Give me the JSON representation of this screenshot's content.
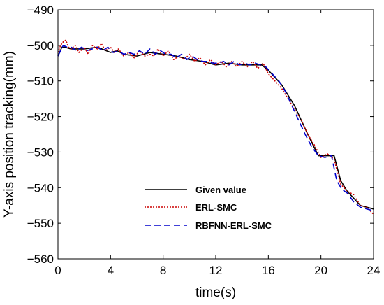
{
  "chart_data": {
    "type": "line",
    "title": "",
    "xlabel": "time(s)",
    "ylabel": "Y-axis position tracking(mm)",
    "xlim": [
      0,
      24
    ],
    "ylim": [
      -560,
      -490
    ],
    "xticks": [
      0,
      4,
      8,
      12,
      16,
      20,
      24
    ],
    "yticks": [
      -490,
      -500,
      -510,
      -520,
      -530,
      -540,
      -550,
      -560
    ],
    "xtick_labels": [
      "0",
      "4",
      "8",
      "12",
      "16",
      "20",
      "24"
    ],
    "ytick_labels": [
      "−490",
      "−500",
      "−510",
      "−520",
      "−530",
      "−540",
      "−550",
      "−560"
    ],
    "grid": false,
    "legend_position": "lower-left-center",
    "series": [
      {
        "name": "Given value",
        "color": "#000000",
        "style": "solid",
        "x": [
          0,
          0.3,
          0.5,
          1,
          2,
          3,
          4,
          4.5,
          5,
          6,
          7,
          8,
          9,
          10,
          11,
          12,
          13,
          14,
          15,
          15.5,
          16,
          17,
          18,
          19,
          19.8,
          20,
          20.5,
          21,
          21.5,
          22,
          23,
          24
        ],
        "y": [
          -503,
          -500.5,
          -500.5,
          -501,
          -501,
          -500.5,
          -502,
          -501.5,
          -502.5,
          -503,
          -502,
          -502.5,
          -503,
          -504,
          -504.5,
          -505.5,
          -505,
          -505.5,
          -505.5,
          -505.5,
          -507,
          -511,
          -517,
          -525,
          -531,
          -531,
          -531,
          -531,
          -538,
          -541,
          -545,
          -546
        ]
      },
      {
        "name": "ERL-SMC",
        "color": "#cc0000",
        "style": "dotted",
        "x": [
          0,
          0.2,
          0.4,
          0.6,
          0.8,
          1,
          1.3,
          1.6,
          2,
          2.3,
          2.6,
          3,
          3.3,
          3.6,
          4,
          4.3,
          4.6,
          5,
          5.4,
          5.8,
          6.2,
          6.6,
          7,
          7.3,
          7.6,
          8,
          8.4,
          8.8,
          9.2,
          9.6,
          10,
          10.4,
          10.8,
          11.2,
          11.6,
          12,
          12.4,
          12.8,
          13.2,
          13.6,
          14,
          14.4,
          14.8,
          15.2,
          15.6,
          16,
          16.5,
          17,
          17.5,
          18,
          18.5,
          19,
          19.5,
          20,
          20.5,
          21,
          21.5,
          22,
          22.5,
          23,
          23.5,
          24
        ],
        "y": [
          -502,
          -500,
          -499,
          -498.5,
          -500.5,
          -501,
          -500,
          -502,
          -500.5,
          -502.5,
          -500,
          -501,
          -499.5,
          -501.5,
          -500.5,
          -502,
          -501,
          -503,
          -502,
          -503.5,
          -501.5,
          -503,
          -502.5,
          -503,
          -501,
          -503,
          -501.5,
          -504,
          -503,
          -504,
          -502.5,
          -504.5,
          -503.5,
          -505.5,
          -504,
          -505.5,
          -504.5,
          -506,
          -504.5,
          -506,
          -504.5,
          -506,
          -504.5,
          -506.5,
          -505,
          -508,
          -510,
          -512,
          -515,
          -518,
          -521,
          -525,
          -528,
          -531.5,
          -530.5,
          -532,
          -539,
          -541,
          -542,
          -545,
          -545.5,
          -547.5
        ]
      },
      {
        "name": "RBFNN-ERL-SMC",
        "color": "#0000cc",
        "style": "dashed",
        "x": [
          0,
          0.2,
          0.4,
          0.7,
          1,
          1.4,
          1.8,
          2.2,
          2.6,
          3,
          3.4,
          3.8,
          4.2,
          4.6,
          5,
          5.4,
          5.8,
          6.2,
          6.6,
          7,
          7.4,
          7.8,
          8.2,
          8.6,
          9,
          9.4,
          9.8,
          10.2,
          10.6,
          11,
          11.4,
          11.8,
          12.2,
          12.6,
          13,
          13.4,
          13.8,
          14.2,
          14.6,
          15,
          15.4,
          15.8,
          16.3,
          16.8,
          17.3,
          17.8,
          18.3,
          18.8,
          19.3,
          19.8,
          20.3,
          20.8,
          21.2,
          21.6,
          22,
          22.5,
          23,
          23.5,
          24
        ],
        "y": [
          -503,
          -501.5,
          -500,
          -500.5,
          -500.5,
          -501.5,
          -500.5,
          -501.5,
          -501,
          -500.5,
          -501.5,
          -500.5,
          -502,
          -501.5,
          -502.5,
          -502,
          -502.5,
          -501.5,
          -502.5,
          -501,
          -502.5,
          -501.5,
          -502.5,
          -502.5,
          -503.5,
          -502.5,
          -504,
          -503,
          -504,
          -504.5,
          -504.5,
          -505,
          -505,
          -504.5,
          -505.5,
          -504.5,
          -505.5,
          -505,
          -505.5,
          -505,
          -505.5,
          -506,
          -508,
          -510,
          -513,
          -517,
          -521,
          -525,
          -528.5,
          -531,
          -531.5,
          -531,
          -538,
          -540.5,
          -541.5,
          -544,
          -545.5,
          -546,
          -546.5
        ]
      }
    ]
  }
}
